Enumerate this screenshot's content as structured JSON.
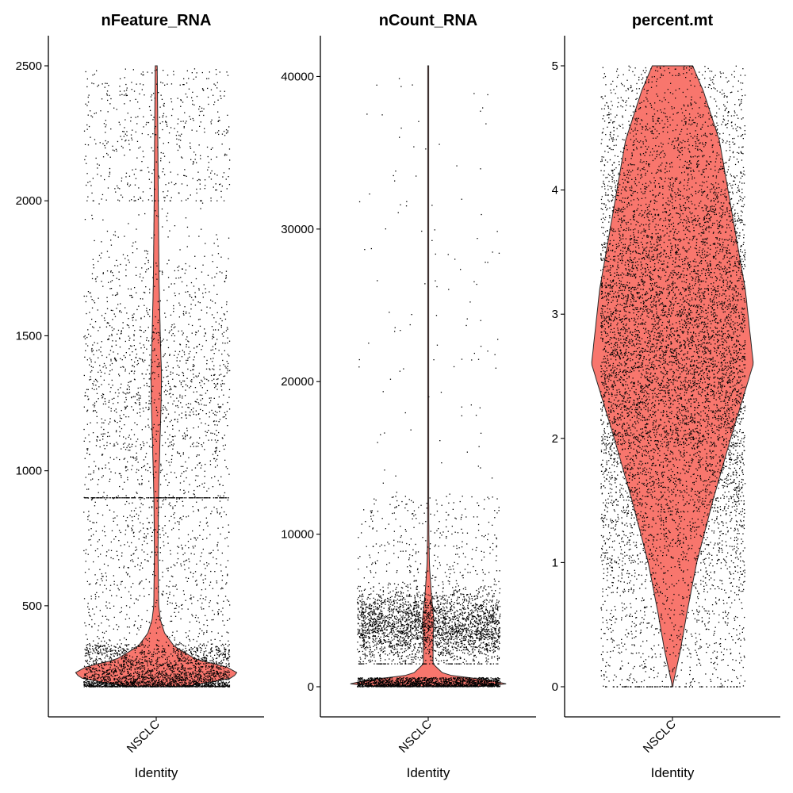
{
  "chart_data": [
    {
      "type": "violin",
      "title": "nFeature_RNA",
      "xlabel": "Identity",
      "ylabel": "",
      "categories": [
        "NSCLC"
      ],
      "ylim": [
        200,
        2500
      ],
      "yticks": [
        500,
        1000,
        1500,
        2000,
        2500
      ],
      "fill_color": "#F8766D",
      "point_color": "#000000",
      "density": [
        [
          200,
          0.35
        ],
        [
          230,
          0.9
        ],
        [
          250,
          1.0
        ],
        [
          275,
          0.85
        ],
        [
          300,
          0.5
        ],
        [
          350,
          0.22
        ],
        [
          400,
          0.1
        ],
        [
          450,
          0.05
        ],
        [
          500,
          0.03
        ],
        [
          700,
          0.022
        ],
        [
          900,
          0.028
        ],
        [
          1100,
          0.045
        ],
        [
          1250,
          0.06
        ],
        [
          1350,
          0.065
        ],
        [
          1500,
          0.05
        ],
        [
          1700,
          0.035
        ],
        [
          2000,
          0.025
        ],
        [
          2300,
          0.018
        ],
        [
          2500,
          0.012
        ]
      ],
      "points": {
        "dense": {
          "range": [
            200,
            360
          ],
          "count": 2600
        },
        "mid": {
          "range": [
            360,
            900
          ],
          "count": 700
        },
        "upper": {
          "range": [
            900,
            2000
          ],
          "count": 1700
        },
        "top": {
          "range": [
            2000,
            2490
          ],
          "count": 500
        }
      }
    },
    {
      "type": "violin",
      "title": "nCount_RNA",
      "xlabel": "Identity",
      "ylabel": "",
      "categories": [
        "NSCLC"
      ],
      "ylim": [
        0,
        40700
      ],
      "yticks": [
        0,
        10000,
        20000,
        30000,
        40000
      ],
      "fill_color": "#F8766D",
      "point_color": "#000000",
      "density": [
        [
          0,
          0.6
        ],
        [
          150,
          1.0
        ],
        [
          400,
          0.8
        ],
        [
          800,
          0.2
        ],
        [
          1500,
          0.06
        ],
        [
          3000,
          0.06
        ],
        [
          4500,
          0.07
        ],
        [
          6000,
          0.04
        ],
        [
          8000,
          0.015
        ],
        [
          10000,
          0.008
        ],
        [
          15000,
          0.004
        ],
        [
          25000,
          0.002
        ],
        [
          35000,
          0.0015
        ],
        [
          40700,
          0.001
        ]
      ],
      "points": {
        "base": {
          "range": [
            0,
            600
          ],
          "count": 1700
        },
        "band": {
          "range": [
            1500,
            7500
          ],
          "count": 3000
        },
        "mid": {
          "range": [
            7500,
            12500
          ],
          "count": 260
        },
        "high": {
          "range": [
            12500,
            40000
          ],
          "count": 110
        }
      }
    },
    {
      "type": "violin",
      "title": "percent.mt",
      "xlabel": "Identity",
      "ylabel": "",
      "categories": [
        "NSCLC"
      ],
      "ylim": [
        0,
        5
      ],
      "yticks": [
        0,
        1,
        2,
        3,
        4,
        5
      ],
      "fill_color": "#F8766D",
      "point_color": "#000000",
      "density": [
        [
          0,
          0.0
        ],
        [
          0.3,
          0.1
        ],
        [
          0.6,
          0.18
        ],
        [
          1.0,
          0.3
        ],
        [
          1.5,
          0.5
        ],
        [
          2.0,
          0.72
        ],
        [
          2.6,
          1.0
        ],
        [
          3.2,
          0.9
        ],
        [
          3.8,
          0.74
        ],
        [
          4.4,
          0.58
        ],
        [
          4.8,
          0.38
        ],
        [
          5.0,
          0.25
        ]
      ],
      "points": {
        "uniform": {
          "range": [
            0,
            5
          ],
          "count": 2200
        },
        "body": {
          "range": [
            0,
            5
          ],
          "count": 6500
        },
        "zero_row": {
          "range": [
            0,
            0
          ],
          "count": 90
        }
      }
    }
  ]
}
